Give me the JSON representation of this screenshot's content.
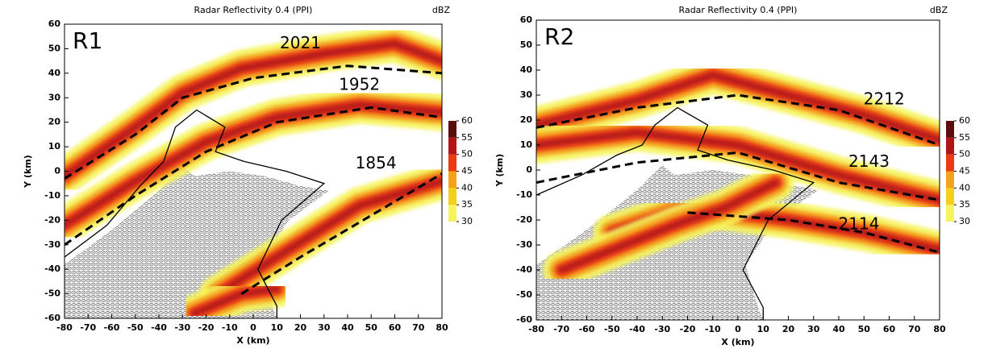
{
  "chart_data": [
    {
      "type": "radar-ppi",
      "panel_label": "R1",
      "title": "Radar Reflectivity 0.4 (PPI)",
      "x_label": "X (km)",
      "y_label": "Y (km)",
      "xlim": [
        -80,
        80
      ],
      "xticks": [
        -80,
        -70,
        -60,
        -50,
        -40,
        -30,
        -20,
        -10,
        0,
        10,
        20,
        30,
        40,
        50,
        60,
        70,
        80
      ],
      "ylim": [
        -60,
        60
      ],
      "yticks": [
        -60,
        -50,
        -40,
        -30,
        -20,
        -10,
        0,
        10,
        20,
        30,
        40,
        50,
        60
      ],
      "colorbar": {
        "label": "dBZ",
        "ticks": [
          30,
          35,
          40,
          45,
          50,
          55,
          60
        ],
        "colors": [
          "#f6f45c",
          "#f5cf1a",
          "#f4a21a",
          "#ec3a14",
          "#b2141a",
          "#5c0d0d"
        ]
      },
      "annotations": [
        "2021",
        "1952",
        "1854"
      ]
    },
    {
      "type": "radar-ppi",
      "panel_label": "R2",
      "title": "Radar Reflectivity 0.4 (PPI)",
      "x_label": "X (km)",
      "y_label": "Y (km)",
      "xlim": [
        -80,
        80
      ],
      "xticks": [
        -80,
        -70,
        -60,
        -50,
        -40,
        -30,
        -20,
        -10,
        0,
        10,
        20,
        30,
        40,
        50,
        60,
        70,
        80
      ],
      "ylim": [
        -60,
        60
      ],
      "yticks": [
        -60,
        -50,
        -40,
        -30,
        -20,
        -10,
        0,
        10,
        20,
        30,
        40,
        50,
        60
      ],
      "colorbar": {
        "label": "dBZ",
        "ticks": [
          30,
          35,
          40,
          45,
          50,
          55,
          60
        ],
        "colors": [
          "#f6f45c",
          "#f5cf1a",
          "#f4a21a",
          "#ec3a14",
          "#b2141a",
          "#5c0d0d"
        ]
      },
      "annotations": [
        "2212",
        "2143",
        "2114"
      ]
    }
  ]
}
